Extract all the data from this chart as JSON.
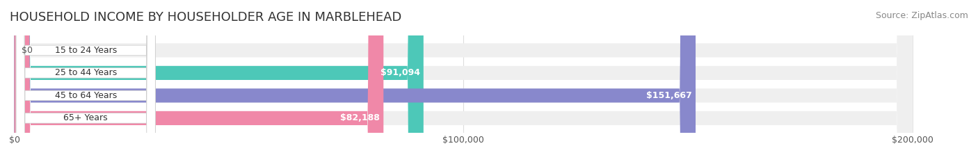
{
  "title": "HOUSEHOLD INCOME BY HOUSEHOLDER AGE IN MARBLEHEAD",
  "source": "Source: ZipAtlas.com",
  "categories": [
    "15 to 24 Years",
    "25 to 44 Years",
    "45 to 64 Years",
    "65+ Years"
  ],
  "values": [
    0,
    91094,
    151667,
    82188
  ],
  "value_labels": [
    "$0",
    "$91,094",
    "$151,667",
    "$82,188"
  ],
  "bar_colors": [
    "#d8a8d8",
    "#4dc8b8",
    "#8888cc",
    "#f088a8"
  ],
  "bar_bg_color": "#efefef",
  "label_bg_color": "#ffffff",
  "xlim_max": 200000,
  "xtick_labels": [
    "$0",
    "$100,000",
    "$200,000"
  ],
  "title_fontsize": 13,
  "source_fontsize": 9,
  "tick_fontsize": 9,
  "bar_label_fontsize": 9,
  "category_fontsize": 9,
  "background_color": "#ffffff",
  "grid_color": "#dddddd",
  "bar_height": 0.62
}
